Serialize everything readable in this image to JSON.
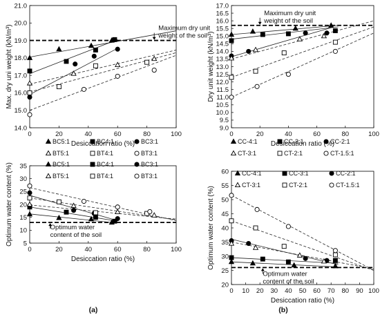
{
  "charts": [
    {
      "id": "tl",
      "title": "",
      "ylabel": "Max. dry uni weight (kN/m³)",
      "xlabel": "Desiccation ratio (%)",
      "xlim": [
        0,
        100
      ],
      "ylim": [
        14.0,
        21.0
      ],
      "xticks": [
        0,
        20,
        40,
        60,
        80,
        100
      ],
      "yticks": [
        "14.0",
        "15.0",
        "16.0",
        "17.0",
        "18.0",
        "19.0",
        "20.0",
        "21.0"
      ],
      "ref_line": {
        "y": 19.0
      },
      "annotation": {
        "lines": [
          "Maximum dry unit",
          "weight of the soil"
        ],
        "x": 85,
        "y": 19.0
      },
      "legend": {
        "rows": [
          [
            {
              "marker": "tri-filled",
              "label": "BC5:1"
            },
            {
              "marker": "sq-filled",
              "label": "BC4:1"
            },
            {
              "marker": "circ-filled",
              "label": "BC3:1"
            }
          ],
          [
            {
              "marker": "tri-open",
              "label": "BT5:1"
            },
            {
              "marker": "sq-open",
              "label": "BT4:1"
            },
            {
              "marker": "circ-open",
              "label": "BT3:1"
            }
          ]
        ]
      },
      "series": [
        {
          "name": "BC5:1",
          "marker": "tri-filled",
          "points": [
            [
              0,
              18.0
            ],
            [
              20,
              18.5
            ],
            [
              42,
              18.7
            ],
            [
              56,
              19.0
            ]
          ],
          "fit": {
            "style": "solid",
            "from": [
              0,
              18.05
            ],
            "to": [
              100,
              19.55
            ]
          }
        },
        {
          "name": "BC4:1",
          "marker": "sq-filled",
          "points": [
            [
              0,
              17.25
            ],
            [
              25,
              17.8
            ],
            [
              45,
              18.45
            ],
            [
              58,
              19.05
            ]
          ],
          "fit": {
            "style": "solid",
            "from": [
              0,
              17.1
            ],
            "to": [
              60,
              19.05
            ]
          }
        },
        {
          "name": "BC3:1",
          "marker": "circ-filled",
          "points": [
            [
              0,
              15.75
            ],
            [
              31,
              17.65
            ],
            [
              44,
              18.1
            ],
            [
              60,
              18.5
            ]
          ],
          "fit": {
            "style": "solid",
            "from": [
              0,
              15.9
            ],
            "to": [
              60,
              18.55
            ]
          }
        },
        {
          "name": "BT5:1",
          "marker": "tri-open",
          "points": [
            [
              0,
              16.55
            ],
            [
              30,
              17.1
            ],
            [
              60,
              17.6
            ],
            [
              85,
              17.95
            ]
          ],
          "fit": {
            "style": "dashed",
            "from": [
              0,
              16.5
            ],
            "to": [
              100,
              18.45
            ]
          }
        },
        {
          "name": "BT4:1",
          "marker": "sq-open",
          "points": [
            [
              0,
              16.0
            ],
            [
              20,
              16.35
            ],
            [
              45,
              17.55
            ],
            [
              80,
              17.75
            ]
          ],
          "fit": {
            "style": "dashed",
            "from": [
              0,
              16.05
            ],
            "to": [
              100,
              18.3
            ]
          }
        },
        {
          "name": "BT3:1",
          "marker": "circ-open",
          "points": [
            [
              0,
              14.75
            ],
            [
              37,
              16.2
            ],
            [
              60,
              16.95
            ],
            [
              85,
              17.3
            ]
          ],
          "fit": {
            "style": "dashed",
            "from": [
              0,
              15.0
            ],
            "to": [
              100,
              18.15
            ]
          }
        }
      ]
    },
    {
      "id": "tr",
      "title": "",
      "ylabel": "Dry unit weight (kN/m³)",
      "xlabel": "Desiccation ratio (%)",
      "xlim": [
        0,
        100
      ],
      "ylim": [
        9.0,
        17.0
      ],
      "xticks": [
        0,
        20,
        40,
        60,
        80,
        100
      ],
      "yticks": [
        "9.0",
        "9.5",
        "10.0",
        "10.5",
        "11.0",
        "11.5",
        "12.0",
        "12.5",
        "13.0",
        "13.5",
        "14.0",
        "14.5",
        "15.0",
        "15.5",
        "16.0",
        "16.5",
        "17.0"
      ],
      "ref_line": {
        "y": 15.7
      },
      "annotation": {
        "lines": [
          "Maximum dry unit",
          "weight of the soil"
        ],
        "x": 20,
        "y": 15.7
      },
      "legend": {
        "rows": [
          [
            {
              "marker": "tri-filled",
              "label": "CC-4:1"
            },
            {
              "marker": "sq-filled",
              "label": "CC-3:1"
            },
            {
              "marker": "circ-filled",
              "label": "CC-2:1"
            }
          ],
          [
            {
              "marker": "tri-open",
              "label": "CT-3:1"
            },
            {
              "marker": "sq-open",
              "label": "CT-2:1"
            },
            {
              "marker": "circ-open",
              "label": "CT-1.5:1"
            }
          ]
        ]
      },
      "series": [
        {
          "name": "CC-4:1",
          "marker": "tri-filled",
          "points": [
            [
              0,
              15.1
            ],
            [
              15,
              15.3
            ],
            [
              45,
              15.5
            ],
            [
              70,
              15.7
            ]
          ],
          "fit": {
            "style": "solid",
            "from": [
              0,
              15.1
            ],
            "to": [
              75,
              15.7
            ]
          }
        },
        {
          "name": "CC-3:1",
          "marker": "sq-filled",
          "points": [
            [
              0,
              14.7
            ],
            [
              22,
              15.1
            ],
            [
              40,
              15.15
            ],
            [
              73,
              15.35
            ]
          ],
          "fit": {
            "style": "solid",
            "from": [
              0,
              14.8
            ],
            "to": [
              75,
              15.6
            ]
          }
        },
        {
          "name": "CC-2:1",
          "marker": "circ-filled",
          "points": [
            [
              0,
              13.7
            ],
            [
              12,
              14.0
            ],
            [
              52,
              15.2
            ],
            [
              67,
              15.2
            ]
          ],
          "fit": {
            "style": "solid",
            "from": [
              0,
              13.65
            ],
            "to": [
              70,
              15.55
            ]
          }
        },
        {
          "name": "CT-3:1",
          "marker": "tri-open",
          "points": [
            [
              0,
              13.55
            ],
            [
              17,
              14.1
            ],
            [
              48,
              14.8
            ],
            [
              65,
              15.0
            ]
          ],
          "fit": {
            "style": "dashed",
            "from": [
              0,
              13.5
            ],
            "to": [
              100,
              16.0
            ]
          }
        },
        {
          "name": "CT-2:1",
          "marker": "sq-open",
          "points": [
            [
              0,
              12.3
            ],
            [
              17,
              12.7
            ],
            [
              37,
              13.9
            ],
            [
              73,
              14.6
            ]
          ],
          "fit": {
            "style": "dashed",
            "from": [
              0,
              12.3
            ],
            "to": [
              100,
              15.6
            ]
          }
        },
        {
          "name": "CT-1.5:1",
          "marker": "circ-open",
          "points": [
            [
              0,
              11.0
            ],
            [
              18,
              11.7
            ],
            [
              40,
              12.5
            ],
            [
              73,
              14.0
            ]
          ],
          "fit": {
            "style": "dashed",
            "from": [
              0,
              11.0
            ],
            "to": [
              100,
              15.2
            ]
          }
        }
      ]
    },
    {
      "id": "bl",
      "title": "",
      "ylabel": "Optimum water content (%)",
      "xlabel": "Desiccation ratio (%)",
      "xlim": [
        0,
        100
      ],
      "ylim": [
        5,
        35
      ],
      "xticks": [
        0,
        20,
        40,
        60,
        80,
        100
      ],
      "yticks": [
        "5",
        "10",
        "15",
        "20",
        "25",
        "30",
        "35"
      ],
      "ref_line": {
        "y": 13.0
      },
      "annotation": {
        "lines": [
          "Optimum water",
          "content of the soil"
        ],
        "x": 14,
        "y": 13.0
      },
      "legend": {
        "rows": [
          [
            {
              "marker": "tri-filled",
              "label": "BC5:1"
            },
            {
              "marker": "sq-filled",
              "label": "BC4:1"
            },
            {
              "marker": "circ-filled",
              "label": "BC3:1"
            }
          ],
          [
            {
              "marker": "tri-open",
              "label": "BT5:1"
            },
            {
              "marker": "sq-open",
              "label": "BT4:1"
            },
            {
              "marker": "circ-open",
              "label": "BT3:1"
            }
          ]
        ]
      },
      "series": [
        {
          "name": "BC5:1",
          "marker": "tri-filled",
          "points": [
            [
              0,
              16.2
            ],
            [
              20,
              14.8
            ],
            [
              42,
              14.3
            ],
            [
              56,
              13.0
            ]
          ],
          "fit": {
            "style": "solid",
            "from": [
              0,
              16.3
            ],
            "to": [
              56,
              13.0
            ]
          }
        },
        {
          "name": "BC4:1",
          "marker": "sq-filled",
          "points": [
            [
              0,
              19.0
            ],
            [
              25,
              17.0
            ],
            [
              45,
              15.0
            ],
            [
              58,
              13.5
            ]
          ],
          "fit": {
            "style": "solid",
            "from": [
              0,
              19.0
            ],
            "to": [
              60,
              13.5
            ]
          }
        },
        {
          "name": "BC3:1",
          "marker": "circ-filled",
          "points": [
            [
              0,
              24.5
            ],
            [
              30,
              17.7
            ],
            [
              44,
              16.5
            ],
            [
              60,
              14.5
            ]
          ],
          "fit": {
            "style": "solid",
            "from": [
              0,
              23.5
            ],
            "to": [
              60,
              13.7
            ]
          }
        },
        {
          "name": "BT5:1",
          "marker": "tri-open",
          "points": [
            [
              0,
              20.0
            ],
            [
              30,
              19.5
            ],
            [
              60,
              17.1
            ],
            [
              85,
              15.8
            ]
          ],
          "fit": {
            "style": "dashed",
            "from": [
              0,
              19.8
            ],
            "to": [
              100,
              14.3
            ]
          }
        },
        {
          "name": "BT4:1",
          "marker": "sq-open",
          "points": [
            [
              0,
              22.5
            ],
            [
              20,
              21.0
            ],
            [
              45,
              16.8
            ],
            [
              80,
              16.5
            ]
          ],
          "fit": {
            "style": "dashed",
            "from": [
              0,
              22.5
            ],
            "to": [
              100,
              14.0
            ]
          }
        },
        {
          "name": "BT3:1",
          "marker": "circ-open",
          "points": [
            [
              0,
              27.2
            ],
            [
              37,
              21.2
            ],
            [
              60,
              19.0
            ],
            [
              82,
              17.2
            ]
          ],
          "fit": {
            "style": "dashed",
            "from": [
              0,
              26.5
            ],
            "to": [
              100,
              13.7
            ]
          }
        }
      ]
    },
    {
      "id": "br",
      "title": "",
      "ylabel": "Optimum water content (%)",
      "xlabel": "Desiccation ratio (%)",
      "xlim": [
        0,
        100
      ],
      "ylim": [
        20,
        60
      ],
      "xticks": [
        0,
        10,
        20,
        30,
        40,
        50,
        60,
        70,
        80,
        90,
        100
      ],
      "yticks": [
        "20",
        "25",
        "30",
        "35",
        "40",
        "45",
        "50",
        "55",
        "60"
      ],
      "ref_line": {
        "y": 26.0
      },
      "annotation": {
        "lines": [
          "Optimum water",
          "content of the soil"
        ],
        "x": 22,
        "y": 26.0
      },
      "legend": {
        "rows": [
          [
            {
              "marker": "tri-filled",
              "label": "CC-4:1"
            },
            {
              "marker": "sq-filled",
              "label": "CC-3:1"
            },
            {
              "marker": "circ-filled",
              "label": "CC-2:1"
            }
          ],
          [
            {
              "marker": "tri-open",
              "label": "CT-3:1"
            },
            {
              "marker": "sq-open",
              "label": "CT-2:1"
            },
            {
              "marker": "circ-open",
              "label": "CT-1.5:1"
            }
          ]
        ]
      },
      "series": [
        {
          "name": "CC-4:1",
          "marker": "tri-filled",
          "points": [
            [
              0,
              28.0
            ],
            [
              15,
              27.5
            ],
            [
              44,
              26.8
            ],
            [
              73,
              26.5
            ]
          ],
          "fit": {
            "style": "solid",
            "from": [
              0,
              28.0
            ],
            "to": [
              75,
              26.2
            ]
          }
        },
        {
          "name": "CC-3:1",
          "marker": "sq-filled",
          "points": [
            [
              0,
              29.5
            ],
            [
              22,
              29.0
            ],
            [
              40,
              28.0
            ],
            [
              73,
              28.5
            ]
          ],
          "fit": {
            "style": "solid",
            "from": [
              0,
              29.5
            ],
            "to": [
              75,
              27.5
            ]
          }
        },
        {
          "name": "CC-2:1",
          "marker": "circ-filled",
          "points": [
            [
              0,
              35.5
            ],
            [
              12,
              34.5
            ],
            [
              52,
              29.2
            ],
            [
              67,
              28.5
            ]
          ],
          "fit": {
            "style": "solid",
            "from": [
              0,
              36.0
            ],
            "to": [
              75,
              27.0
            ]
          }
        },
        {
          "name": "CT-3:1",
          "marker": "tri-open",
          "points": [
            [
              0,
              34.5
            ],
            [
              17,
              33.0
            ],
            [
              48,
              30.3
            ],
            [
              65,
              28.2
            ]
          ],
          "fit": {
            "style": "dashed",
            "from": [
              0,
              35.0
            ],
            "to": [
              100,
              25.5
            ]
          }
        },
        {
          "name": "CT-2:1",
          "marker": "sq-open",
          "points": [
            [
              0,
              42.5
            ],
            [
              17,
              40.0
            ],
            [
              37,
              33.5
            ],
            [
              73,
              30.5
            ]
          ],
          "fit": {
            "style": "dashed",
            "from": [
              0,
              42.5
            ],
            "to": [
              100,
              25.0
            ]
          }
        },
        {
          "name": "CT-1.5:1",
          "marker": "circ-open",
          "points": [
            [
              0,
              51.5
            ],
            [
              18,
              46.5
            ],
            [
              40,
              40.5
            ],
            [
              73,
              32.0
            ]
          ],
          "fit": {
            "style": "dashed",
            "from": [
              0,
              51.5
            ],
            "to": [
              100,
              25.0
            ]
          }
        }
      ]
    }
  ],
  "captions": {
    "left": "(a)",
    "right": "(b)"
  }
}
